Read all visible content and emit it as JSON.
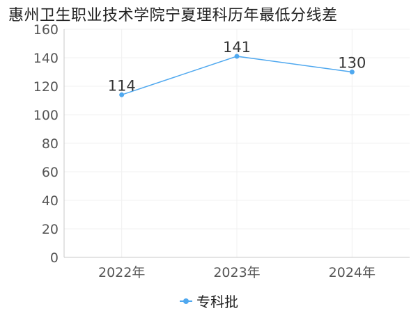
{
  "chart_data": {
    "type": "line",
    "title": "惠州卫生职业技术学院宁夏理科历年最低分线差",
    "categories": [
      "2022年",
      "2023年",
      "2024年"
    ],
    "series": [
      {
        "name": "专科批",
        "values": [
          114,
          141,
          130
        ],
        "color": "#4fa8ef"
      }
    ],
    "ylim": [
      0,
      160
    ],
    "yticks": [
      0,
      20,
      40,
      60,
      80,
      100,
      120,
      140,
      160
    ],
    "grid": true,
    "legend_position": "bottom"
  }
}
